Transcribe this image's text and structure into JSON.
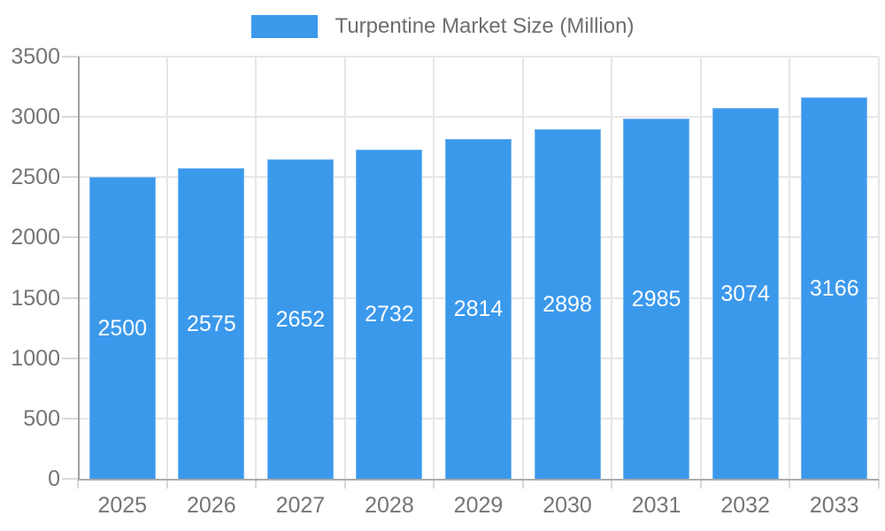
{
  "chart_data": {
    "type": "bar",
    "title": "Turpentine Market Size (Million)",
    "legend_position": "top",
    "categories": [
      "2025",
      "2026",
      "2027",
      "2028",
      "2029",
      "2030",
      "2031",
      "2032",
      "2033"
    ],
    "values": [
      2500,
      2575,
      2652,
      2732,
      2814,
      2898,
      2985,
      3074,
      3166
    ],
    "series": [
      {
        "name": "Turpentine Market Size (Million)",
        "values": [
          2500,
          2575,
          2652,
          2732,
          2814,
          2898,
          2985,
          3074,
          3166
        ]
      }
    ],
    "xlabel": "",
    "ylabel": "",
    "ylim": [
      0,
      3500
    ],
    "yticks": [
      0,
      500,
      1000,
      1500,
      2000,
      2500,
      3000,
      3500
    ],
    "grid": true,
    "bar_value_labels": true,
    "colors": {
      "bar": "#3b99ec",
      "bar_label": "#ffffff",
      "axis_text": "#757575",
      "legend_text": "#6e6e6e",
      "gridline": "#e6e6e6",
      "axis_line": "#a6a6a6",
      "tick": "#d9d9d9",
      "background": "#ffffff"
    }
  }
}
